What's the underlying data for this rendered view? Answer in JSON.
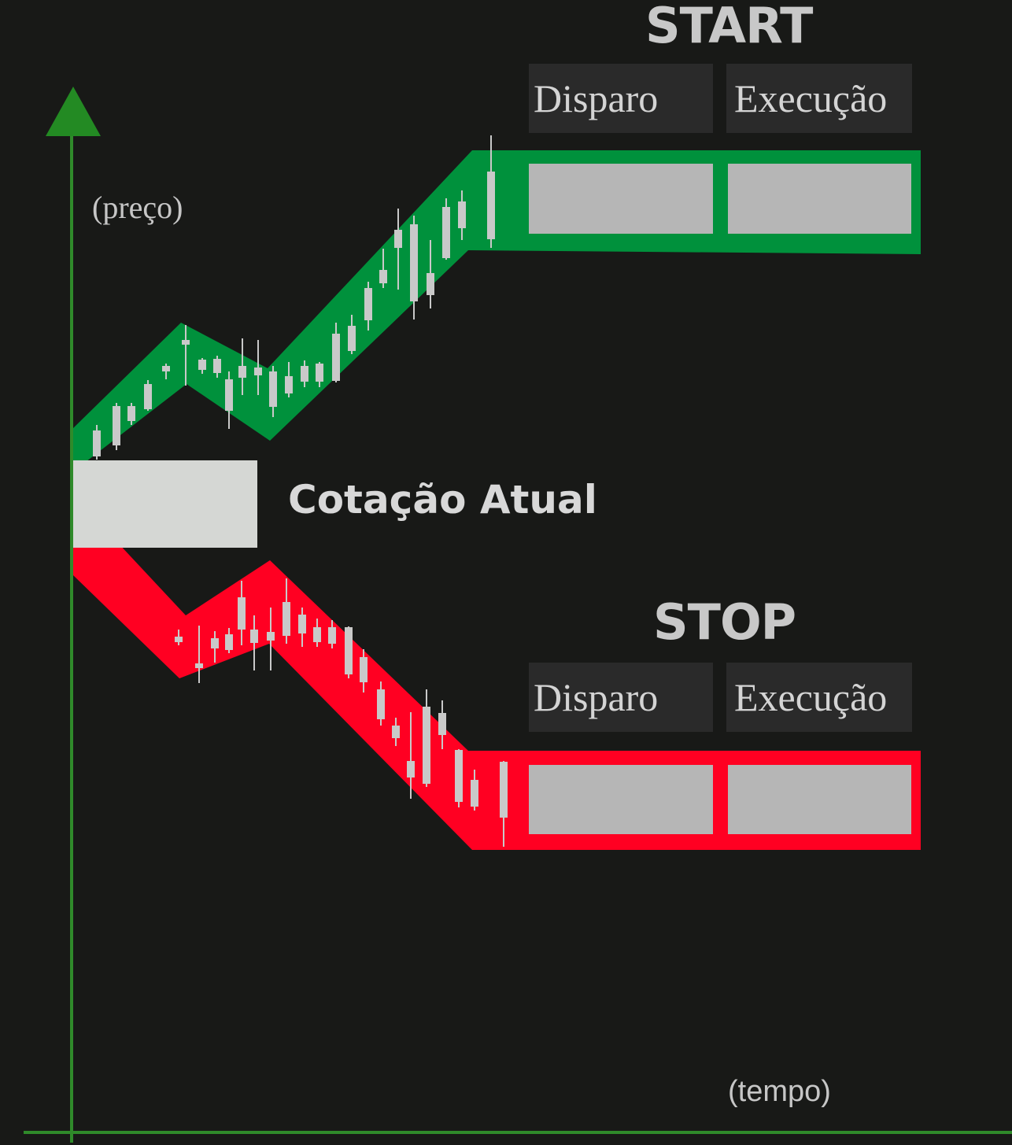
{
  "axes": {
    "y_label": "(preço)",
    "x_label": "(tempo)",
    "axis_color": "#2f8a2a",
    "arrow_color": "#238a23"
  },
  "start": {
    "title": "START",
    "trigger_label": "Disparo",
    "execution_label": "Execução",
    "band_color": "#00913c"
  },
  "stop": {
    "title": "STOP",
    "trigger_label": "Disparo",
    "execution_label": "Execução",
    "band_color": "#ff0022"
  },
  "current_price": {
    "label": "Cotação Atual",
    "box_color": "#d5d7d4"
  },
  "candle_color": "#c9c9c9",
  "field_color": "#b6b6b6"
}
